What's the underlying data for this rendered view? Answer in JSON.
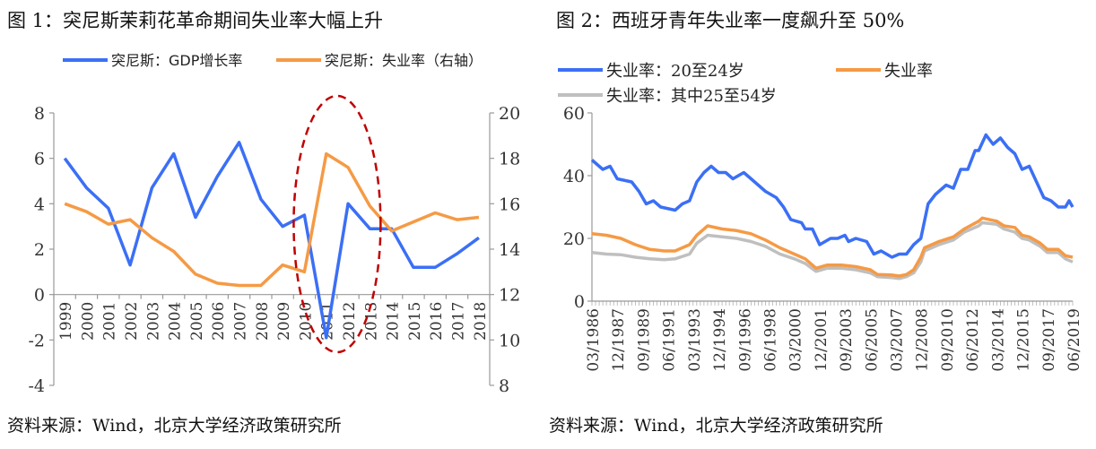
{
  "chart_data": [
    {
      "type": "line",
      "title": "图 1：突尼斯茉莉花革命期间失业率大幅上升",
      "source": "资料来源：Wind，北京大学经济政策研究所",
      "categories": [
        "1999",
        "2000",
        "2001",
        "2002",
        "2003",
        "2004",
        "2005",
        "2006",
        "2007",
        "2008",
        "2009",
        "2010",
        "2011",
        "2012",
        "2013",
        "2014",
        "2015",
        "2016",
        "2017",
        "2018"
      ],
      "ylim": [
        -4,
        8
      ],
      "yticks": [
        "-4",
        "-2",
        "0",
        "2",
        "4",
        "6",
        "8"
      ],
      "y2lim": [
        8,
        20
      ],
      "y2ticks": [
        "8",
        "10",
        "12",
        "14",
        "16",
        "18",
        "20"
      ],
      "legend": "top",
      "series": [
        {
          "name": "突尼斯：GDP增长率",
          "axis": "left",
          "color": "#3b6ff5",
          "values": [
            6.0,
            4.7,
            3.8,
            1.3,
            4.7,
            6.2,
            3.4,
            5.2,
            6.7,
            4.2,
            3.0,
            3.5,
            -1.9,
            4.0,
            2.9,
            2.9,
            1.2,
            1.2,
            1.8,
            2.5
          ]
        },
        {
          "name": "突尼斯：失业率（右轴）",
          "axis": "right",
          "color": "#f59a45",
          "values": [
            16.0,
            15.65,
            15.1,
            15.3,
            14.5,
            13.9,
            12.9,
            12.5,
            12.4,
            12.4,
            13.3,
            13.0,
            18.2,
            17.6,
            15.9,
            14.8,
            15.2,
            15.6,
            15.3,
            15.4
          ]
        }
      ],
      "annotation": {
        "type": "dashed-ellipse",
        "color": "#c00000",
        "around": [
          "2010",
          "2013"
        ]
      }
    },
    {
      "type": "line",
      "title": "图 2：西班牙青年失业率一度飙升至 50%",
      "source": "资料来源：Wind，北京大学经济政策研究所",
      "xlim": [
        "03/1986",
        "06/2019"
      ],
      "xticks": [
        "03/1986",
        "12/1987",
        "09/1989",
        "06/1991",
        "03/1993",
        "12/1994",
        "09/1996",
        "06/1998",
        "03/2000",
        "12/2001",
        "09/2003",
        "06/2005",
        "03/2007",
        "12/2008",
        "09/2010",
        "06/2012",
        "03/2014",
        "12/2015",
        "09/2017",
        "06/2019"
      ],
      "ylim": [
        0,
        60
      ],
      "yticks": [
        "0",
        "20",
        "40",
        "60"
      ],
      "legend": "top",
      "series": [
        {
          "name": "失业率：20至24岁",
          "color": "#3b6ff5",
          "points": [
            [
              "03/1986",
              45
            ],
            [
              "12/1986",
              42
            ],
            [
              "06/1987",
              43
            ],
            [
              "12/1987",
              39
            ],
            [
              "12/1988",
              38
            ],
            [
              "06/1989",
              35
            ],
            [
              "12/1989",
              31
            ],
            [
              "06/1990",
              32
            ],
            [
              "12/1990",
              30
            ],
            [
              "12/1991",
              29
            ],
            [
              "06/1992",
              31
            ],
            [
              "12/1992",
              32
            ],
            [
              "06/1993",
              38
            ],
            [
              "12/1993",
              41
            ],
            [
              "06/1994",
              43
            ],
            [
              "12/1994",
              41
            ],
            [
              "06/1995",
              41
            ],
            [
              "12/1995",
              39
            ],
            [
              "09/1996",
              41
            ],
            [
              "06/1997",
              38
            ],
            [
              "03/1998",
              35
            ],
            [
              "12/1998",
              33
            ],
            [
              "06/1999",
              30
            ],
            [
              "12/1999",
              26
            ],
            [
              "09/2000",
              25
            ],
            [
              "12/2000",
              23
            ],
            [
              "06/2001",
              23
            ],
            [
              "12/2001",
              18
            ],
            [
              "09/2002",
              20
            ],
            [
              "03/2003",
              20
            ],
            [
              "09/2003",
              21
            ],
            [
              "12/2003",
              19
            ],
            [
              "06/2004",
              20
            ],
            [
              "03/2005",
              19
            ],
            [
              "09/2005",
              15
            ],
            [
              "03/2006",
              16
            ],
            [
              "12/2006",
              14
            ],
            [
              "06/2007",
              15
            ],
            [
              "12/2007",
              15
            ],
            [
              "06/2008",
              18
            ],
            [
              "12/2008",
              20
            ],
            [
              "06/2009",
              31
            ],
            [
              "12/2009",
              34
            ],
            [
              "09/2010",
              37
            ],
            [
              "03/2011",
              36
            ],
            [
              "09/2011",
              42
            ],
            [
              "03/2012",
              42
            ],
            [
              "09/2012",
              48
            ],
            [
              "12/2012",
              48
            ],
            [
              "06/2013",
              53
            ],
            [
              "12/2013",
              50
            ],
            [
              "06/2014",
              52
            ],
            [
              "12/2014",
              49
            ],
            [
              "06/2015",
              47
            ],
            [
              "12/2015",
              42
            ],
            [
              "06/2016",
              43
            ],
            [
              "12/2016",
              38
            ],
            [
              "06/2017",
              33
            ],
            [
              "12/2017",
              32
            ],
            [
              "06/2018",
              30
            ],
            [
              "12/2018",
              30
            ],
            [
              "03/2019",
              32
            ],
            [
              "06/2019",
              30
            ]
          ]
        },
        {
          "name": "失业率",
          "color": "#f59a45",
          "points": [
            [
              "03/1986",
              21.5
            ],
            [
              "03/1987",
              21
            ],
            [
              "03/1988",
              20
            ],
            [
              "03/1989",
              18
            ],
            [
              "03/1990",
              16.5
            ],
            [
              "03/1991",
              16
            ],
            [
              "12/1991",
              16
            ],
            [
              "12/1992",
              18
            ],
            [
              "06/1993",
              21
            ],
            [
              "03/1994",
              24
            ],
            [
              "03/1995",
              23
            ],
            [
              "03/1996",
              22.5
            ],
            [
              "03/1997",
              21.5
            ],
            [
              "03/1998",
              19.5
            ],
            [
              "03/1999",
              17
            ],
            [
              "03/2000",
              15
            ],
            [
              "12/2000",
              13.5
            ],
            [
              "09/2001",
              10.5
            ],
            [
              "06/2002",
              11.5
            ],
            [
              "06/2003",
              11.5
            ],
            [
              "06/2004",
              11
            ],
            [
              "06/2005",
              10
            ],
            [
              "12/2005",
              8.5
            ],
            [
              "12/2006",
              8.3
            ],
            [
              "06/2007",
              8
            ],
            [
              "12/2007",
              8.5
            ],
            [
              "06/2008",
              10
            ],
            [
              "12/2008",
              14
            ],
            [
              "03/2009",
              17
            ],
            [
              "03/2010",
              19
            ],
            [
              "03/2011",
              20.5
            ],
            [
              "12/2011",
              23
            ],
            [
              "12/2012",
              25.5
            ],
            [
              "03/2013",
              26.5
            ],
            [
              "03/2014",
              25.5
            ],
            [
              "09/2014",
              24
            ],
            [
              "06/2015",
              23.5
            ],
            [
              "12/2015",
              21
            ],
            [
              "06/2016",
              20.5
            ],
            [
              "03/2017",
              18.5
            ],
            [
              "09/2017",
              16.5
            ],
            [
              "06/2018",
              16.5
            ],
            [
              "12/2018",
              14.5
            ],
            [
              "06/2019",
              14
            ]
          ]
        },
        {
          "name": "失业率：其中25至54岁",
          "color": "#bfbfbf",
          "points": [
            [
              "03/1986",
              15.5
            ],
            [
              "03/1987",
              15
            ],
            [
              "03/1988",
              14.8
            ],
            [
              "03/1989",
              14
            ],
            [
              "03/1990",
              13.5
            ],
            [
              "03/1991",
              13.2
            ],
            [
              "12/1991",
              13.5
            ],
            [
              "12/1992",
              15
            ],
            [
              "06/1993",
              18.5
            ],
            [
              "03/1994",
              21
            ],
            [
              "03/1995",
              20.5
            ],
            [
              "03/1996",
              20
            ],
            [
              "03/1997",
              19
            ],
            [
              "03/1998",
              17.5
            ],
            [
              "03/1999",
              15
            ],
            [
              "03/2000",
              13.5
            ],
            [
              "12/2000",
              12
            ],
            [
              "09/2001",
              9.5
            ],
            [
              "06/2002",
              10.5
            ],
            [
              "06/2003",
              10.5
            ],
            [
              "06/2004",
              10
            ],
            [
              "06/2005",
              9
            ],
            [
              "12/2005",
              7.8
            ],
            [
              "12/2006",
              7.5
            ],
            [
              "06/2007",
              7.2
            ],
            [
              "12/2007",
              7.8
            ],
            [
              "06/2008",
              9
            ],
            [
              "12/2008",
              12.5
            ],
            [
              "03/2009",
              16
            ],
            [
              "03/2010",
              18
            ],
            [
              "03/2011",
              19.5
            ],
            [
              "12/2011",
              22
            ],
            [
              "12/2012",
              24
            ],
            [
              "03/2013",
              25
            ],
            [
              "03/2014",
              24.5
            ],
            [
              "09/2014",
              23
            ],
            [
              "06/2015",
              22
            ],
            [
              "12/2015",
              20
            ],
            [
              "06/2016",
              19.5
            ],
            [
              "03/2017",
              17.5
            ],
            [
              "09/2017",
              15.5
            ],
            [
              "06/2018",
              15.5
            ],
            [
              "12/2018",
              13.5
            ],
            [
              "06/2019",
              12.5
            ]
          ]
        }
      ]
    }
  ]
}
